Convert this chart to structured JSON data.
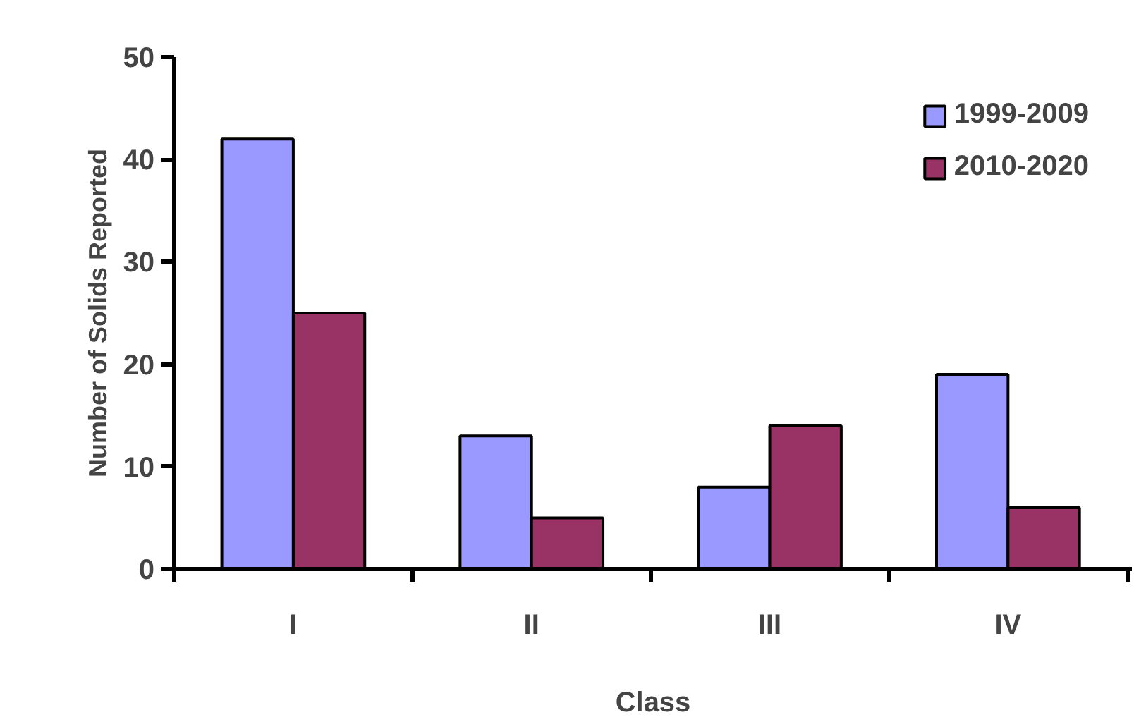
{
  "chart_data": {
    "type": "bar",
    "xlabel": "Class",
    "ylabel": "Number of Solids Reported",
    "categories": [
      "I",
      "II",
      "III",
      "IV"
    ],
    "series": [
      {
        "name": "1999-2009",
        "color": "#9999ff",
        "values": [
          42,
          13,
          8,
          19
        ]
      },
      {
        "name": "2010-2020",
        "color": "#993366",
        "values": [
          25,
          5,
          14,
          6
        ]
      }
    ],
    "ylim": [
      0,
      50
    ],
    "yticks": [
      0,
      10,
      20,
      30,
      40,
      50
    ],
    "grid": false,
    "legend": "top right"
  }
}
